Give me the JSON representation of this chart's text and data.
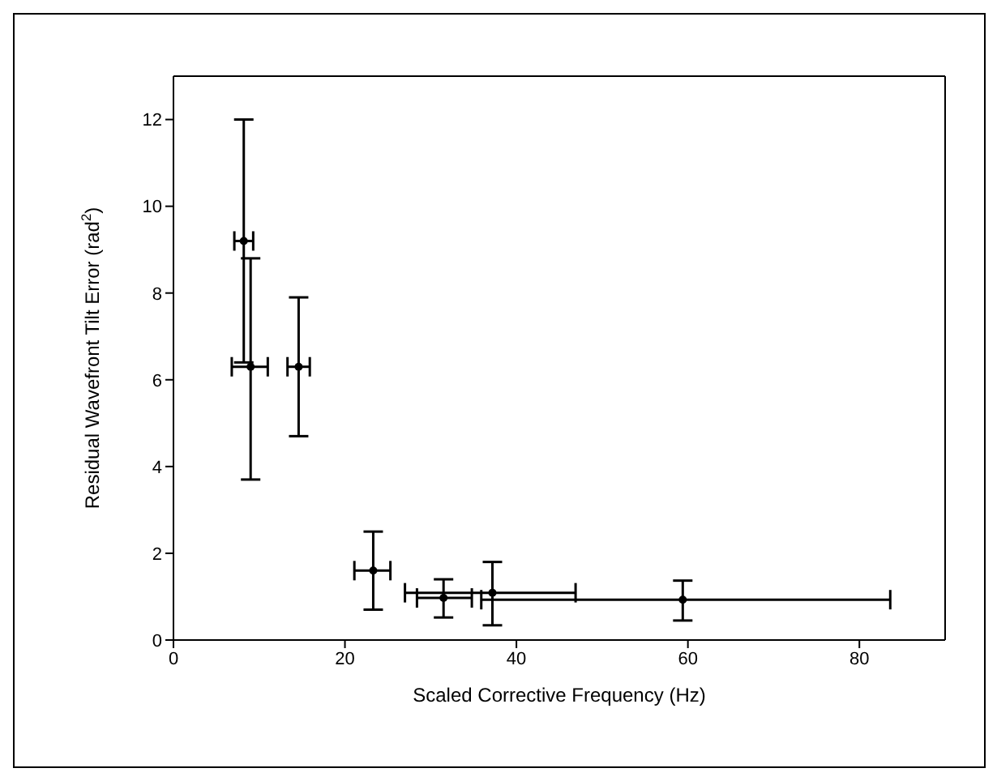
{
  "chart_data": {
    "type": "scatter",
    "xlabel": "Scaled Corrective Frequency (Hz)",
    "ylabel": "Residual Wavefront Tilt Error (rad$^{2}$)",
    "xlim": [
      0,
      90
    ],
    "xticks": [
      0,
      20,
      40,
      60,
      80
    ],
    "ylim": [
      0,
      13
    ],
    "yticks": [
      0,
      2,
      4,
      6,
      8,
      10,
      12
    ],
    "marker": "circle",
    "series": [
      {
        "color": "#000000",
        "x": [
          8.2,
          9.0,
          14.6,
          23.3,
          31.5,
          37.2,
          59.4
        ],
        "values": [
          9.2,
          6.3,
          6.3,
          1.6,
          0.97,
          1.09,
          0.93
        ],
        "errors": [
          [
            6.4,
            12.0
          ],
          [
            3.7,
            8.8
          ],
          [
            4.7,
            7.9
          ],
          [
            0.7,
            2.5
          ],
          [
            0.52,
            1.4
          ],
          [
            0.34,
            1.8
          ],
          [
            0.45,
            1.37
          ]
        ],
        "xerrors": [
          [
            7.1,
            9.3
          ],
          [
            6.8,
            11.0
          ],
          [
            13.3,
            15.9
          ],
          [
            21.1,
            25.3
          ],
          [
            28.4,
            34.8
          ],
          [
            27.0,
            46.9
          ],
          [
            35.9,
            83.6
          ]
        ]
      }
    ]
  }
}
